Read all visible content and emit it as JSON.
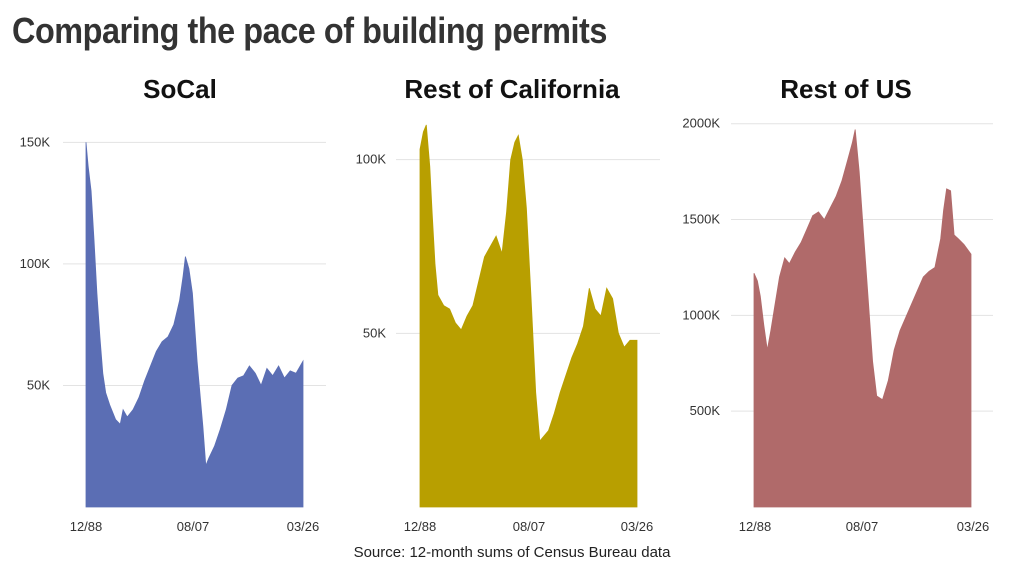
{
  "title": "Comparing the pace of building permits",
  "source": "Source: 12-month sums of Census Bureau data",
  "chart_data": [
    {
      "type": "area",
      "title": "SoCal",
      "color": "#5b6eb4",
      "x_ticks": [
        "12/88",
        "08/07",
        "03/26"
      ],
      "y_ticks": [
        {
          "v": 50000,
          "label": "50K"
        },
        {
          "v": 100000,
          "label": "100K"
        },
        {
          "v": 150000,
          "label": "150K"
        }
      ],
      "ylim": [
        0,
        160000
      ],
      "x": [
        1988.92,
        1989.3,
        1989.8,
        1990.3,
        1990.8,
        1991.3,
        1991.8,
        1992.3,
        1993,
        1994,
        1994.8,
        1995.3,
        1996,
        1997,
        1998,
        1999,
        2000,
        2001,
        2002,
        2003,
        2004,
        2005,
        2005.6,
        2006,
        2006.6,
        2007.2,
        2008,
        2009,
        2009.5,
        2010,
        2011,
        2012,
        2013,
        2014,
        2015,
        2016,
        2017,
        2018,
        2019,
        2020,
        2021,
        2022,
        2023,
        2024,
        2025,
        2026.2
      ],
      "y": [
        150000,
        140000,
        130000,
        110000,
        88000,
        70000,
        55000,
        47000,
        42000,
        36000,
        34000,
        40000,
        37000,
        40000,
        45000,
        52000,
        58000,
        64000,
        68000,
        70000,
        75000,
        85000,
        95000,
        103000,
        98000,
        88000,
        60000,
        33000,
        17000,
        20000,
        25000,
        32000,
        40000,
        50000,
        53000,
        54000,
        58000,
        55000,
        50000,
        57000,
        54000,
        58000,
        53000,
        56000,
        55000,
        60000
      ]
    },
    {
      "type": "area",
      "title": "Rest of California",
      "color": "#b89f00",
      "x_ticks": [
        "12/88",
        "08/07",
        "03/26"
      ],
      "y_ticks": [
        {
          "v": 50000,
          "label": "50K"
        },
        {
          "v": 100000,
          "label": "100K"
        }
      ],
      "ylim": [
        0,
        112000
      ],
      "x": [
        1988.92,
        1989.5,
        1990,
        1990.6,
        1991,
        1991.5,
        1992,
        1993,
        1994,
        1995,
        1996,
        1997,
        1998,
        1999,
        2000,
        2001,
        2002,
        2003,
        2003.8,
        2004.5,
        2005.2,
        2005.8,
        2006.5,
        2007.2,
        2008,
        2008.8,
        2009.5,
        2010,
        2011,
        2012,
        2013,
        2014,
        2015,
        2016,
        2017,
        2018,
        2019,
        2020,
        2021,
        2022,
        2023,
        2024,
        2025,
        2026.2
      ],
      "y": [
        103000,
        108000,
        110000,
        98000,
        85000,
        70000,
        61000,
        58000,
        57000,
        53000,
        51000,
        55000,
        58000,
        65000,
        72000,
        75000,
        78000,
        73000,
        85000,
        100000,
        105000,
        107000,
        100000,
        86000,
        60000,
        33000,
        19000,
        20000,
        22000,
        27000,
        33000,
        38000,
        43000,
        47000,
        52000,
        63000,
        57000,
        55000,
        63000,
        60000,
        50000,
        46000,
        48000,
        48000
      ]
    },
    {
      "type": "area",
      "title": "Rest of US",
      "color": "#b06a6a",
      "x_ticks": [
        "12/88",
        "08/07",
        "03/26"
      ],
      "y_ticks": [
        {
          "v": 500000,
          "label": "500K"
        },
        {
          "v": 1000000,
          "label": "1000K"
        },
        {
          "v": 1500000,
          "label": "1500K"
        },
        {
          "v": 2000000,
          "label": "2000K"
        }
      ],
      "ylim": [
        0,
        2030000
      ],
      "x": [
        1988.92,
        1989.5,
        1990,
        1990.6,
        1991.2,
        1991.8,
        1992.5,
        1993.3,
        1994.2,
        1995,
        1996,
        1997,
        1998,
        1999,
        2000,
        2001,
        2002,
        2003,
        2004,
        2005,
        2005.8,
        2006.3,
        2007,
        2007.8,
        2008.5,
        2009.3,
        2010,
        2011,
        2012,
        2013,
        2014,
        2015,
        2016,
        2017,
        2018,
        2019,
        2020,
        2021,
        2021.5,
        2022,
        2022.7,
        2023.3,
        2024,
        2025,
        2026.2
      ],
      "y": [
        1220000,
        1180000,
        1100000,
        950000,
        820000,
        920000,
        1050000,
        1200000,
        1300000,
        1270000,
        1330000,
        1380000,
        1450000,
        1520000,
        1540000,
        1500000,
        1560000,
        1620000,
        1700000,
        1810000,
        1900000,
        1970000,
        1750000,
        1400000,
        1100000,
        760000,
        580000,
        560000,
        660000,
        820000,
        920000,
        990000,
        1060000,
        1130000,
        1200000,
        1230000,
        1250000,
        1400000,
        1550000,
        1660000,
        1650000,
        1420000,
        1400000,
        1370000,
        1320000
      ]
    }
  ]
}
